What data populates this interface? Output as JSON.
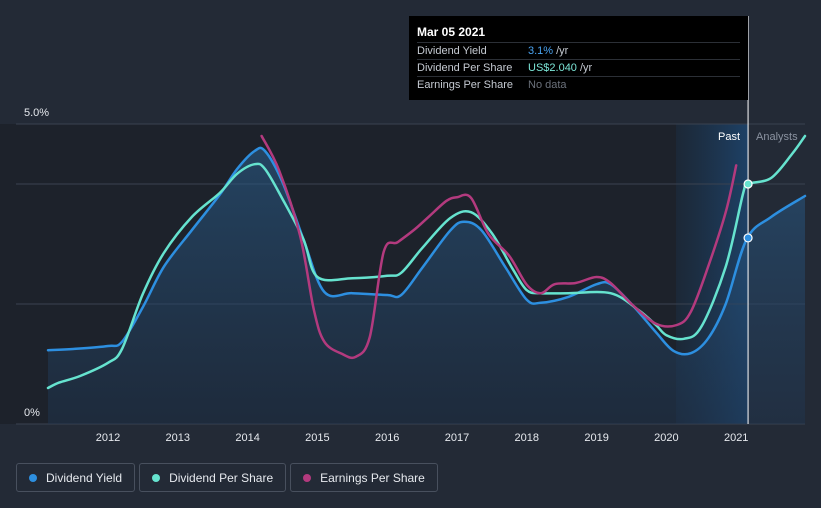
{
  "chart_data": {
    "type": "line",
    "y_axis": {
      "ylim": [
        0,
        5.0
      ],
      "top_label": "5.0%",
      "bottom_label": "0%"
    },
    "x_ticks": [
      "2012",
      "2013",
      "2014",
      "2015",
      "2016",
      "2017",
      "2018",
      "2019",
      "2020",
      "2021"
    ],
    "past_label": "Past",
    "analysts_label": "Analysts",
    "series": [
      {
        "name": "Dividend Yield",
        "color": "#2d8fe0",
        "filled": true,
        "points": [
          [
            2011.0,
            1.23
          ],
          [
            2011.5,
            1.25
          ],
          [
            2012.0,
            1.3
          ],
          [
            2012.2,
            1.37
          ],
          [
            2012.5,
            1.95
          ],
          [
            2012.8,
            2.62
          ],
          [
            2013.2,
            3.23
          ],
          [
            2013.6,
            3.82
          ],
          [
            2013.85,
            4.25
          ],
          [
            2014.1,
            4.55
          ],
          [
            2014.25,
            4.55
          ],
          [
            2014.5,
            4.03
          ],
          [
            2014.8,
            3.08
          ],
          [
            2015.1,
            2.2
          ],
          [
            2015.5,
            2.18
          ],
          [
            2016.0,
            2.15
          ],
          [
            2016.2,
            2.15
          ],
          [
            2016.5,
            2.6
          ],
          [
            2016.9,
            3.22
          ],
          [
            2017.1,
            3.37
          ],
          [
            2017.35,
            3.23
          ],
          [
            2017.7,
            2.6
          ],
          [
            2018.0,
            2.07
          ],
          [
            2018.2,
            2.02
          ],
          [
            2018.6,
            2.12
          ],
          [
            2019.0,
            2.33
          ],
          [
            2019.2,
            2.33
          ],
          [
            2019.5,
            2.0
          ],
          [
            2019.85,
            1.53
          ],
          [
            2020.1,
            1.22
          ],
          [
            2020.35,
            1.18
          ],
          [
            2020.6,
            1.43
          ],
          [
            2020.85,
            2.0
          ],
          [
            2021.15,
            3.08
          ],
          [
            2021.5,
            3.45
          ],
          [
            2022.0,
            3.8
          ]
        ]
      },
      {
        "name": "Dividend Per Share",
        "color": "#66e3cf",
        "filled": false,
        "points": [
          [
            2011.0,
            0.6
          ],
          [
            2011.3,
            0.69
          ],
          [
            2011.6,
            0.8
          ],
          [
            2012.0,
            1.02
          ],
          [
            2012.2,
            1.25
          ],
          [
            2012.5,
            2.17
          ],
          [
            2012.8,
            2.85
          ],
          [
            2013.2,
            3.45
          ],
          [
            2013.6,
            3.85
          ],
          [
            2013.85,
            4.17
          ],
          [
            2014.1,
            4.33
          ],
          [
            2014.25,
            4.25
          ],
          [
            2014.5,
            3.75
          ],
          [
            2014.8,
            3.08
          ],
          [
            2015.0,
            2.45
          ],
          [
            2015.5,
            2.43
          ],
          [
            2016.0,
            2.47
          ],
          [
            2016.2,
            2.52
          ],
          [
            2016.5,
            2.93
          ],
          [
            2016.9,
            3.43
          ],
          [
            2017.2,
            3.53
          ],
          [
            2017.5,
            3.18
          ],
          [
            2017.8,
            2.58
          ],
          [
            2018.0,
            2.23
          ],
          [
            2018.2,
            2.18
          ],
          [
            2018.6,
            2.18
          ],
          [
            2019.2,
            2.18
          ],
          [
            2019.6,
            1.9
          ],
          [
            2019.85,
            1.65
          ],
          [
            2020.0,
            1.48
          ],
          [
            2020.25,
            1.42
          ],
          [
            2020.5,
            1.62
          ],
          [
            2020.85,
            2.62
          ],
          [
            2021.1,
            3.85
          ],
          [
            2021.17,
            4.0
          ],
          [
            2021.5,
            4.1
          ],
          [
            2021.8,
            4.5
          ],
          [
            2022.0,
            4.8
          ]
        ]
      },
      {
        "name": "Earnings Per Share",
        "color": "#b33a7e",
        "filled": false,
        "points": [
          [
            2014.2,
            4.8
          ],
          [
            2014.45,
            4.23
          ],
          [
            2014.75,
            3.15
          ],
          [
            2014.95,
            1.9
          ],
          [
            2015.1,
            1.37
          ],
          [
            2015.35,
            1.17
          ],
          [
            2015.55,
            1.12
          ],
          [
            2015.75,
            1.45
          ],
          [
            2015.95,
            2.87
          ],
          [
            2016.15,
            3.03
          ],
          [
            2016.4,
            3.25
          ],
          [
            2016.6,
            3.46
          ],
          [
            2016.85,
            3.72
          ],
          [
            2017.0,
            3.78
          ],
          [
            2017.2,
            3.77
          ],
          [
            2017.45,
            3.17
          ],
          [
            2017.75,
            2.8
          ],
          [
            2018.0,
            2.32
          ],
          [
            2018.2,
            2.18
          ],
          [
            2018.4,
            2.33
          ],
          [
            2018.7,
            2.35
          ],
          [
            2019.0,
            2.45
          ],
          [
            2019.2,
            2.35
          ],
          [
            2019.5,
            2.0
          ],
          [
            2019.85,
            1.67
          ],
          [
            2020.15,
            1.65
          ],
          [
            2020.35,
            1.87
          ],
          [
            2020.6,
            2.63
          ],
          [
            2020.85,
            3.53
          ],
          [
            2021.0,
            4.31
          ]
        ]
      }
    ],
    "highlight": {
      "x": 2021.17,
      "label_date": "Mar 05 2021"
    }
  },
  "tooltip": {
    "date": "Mar 05 2021",
    "rows": [
      {
        "label": "Dividend Yield",
        "value": "3.1%",
        "unit": "/yr"
      },
      {
        "label": "Dividend Per Share",
        "value": "US$2.040",
        "unit": "/yr"
      },
      {
        "label": "Earnings Per Share",
        "value": "No data",
        "unit": ""
      }
    ]
  },
  "legend": [
    {
      "label": "Dividend Yield",
      "color": "#2d8fe0"
    },
    {
      "label": "Dividend Per Share",
      "color": "#66e3cf"
    },
    {
      "label": "Earnings Per Share",
      "color": "#b33a7e"
    }
  ]
}
